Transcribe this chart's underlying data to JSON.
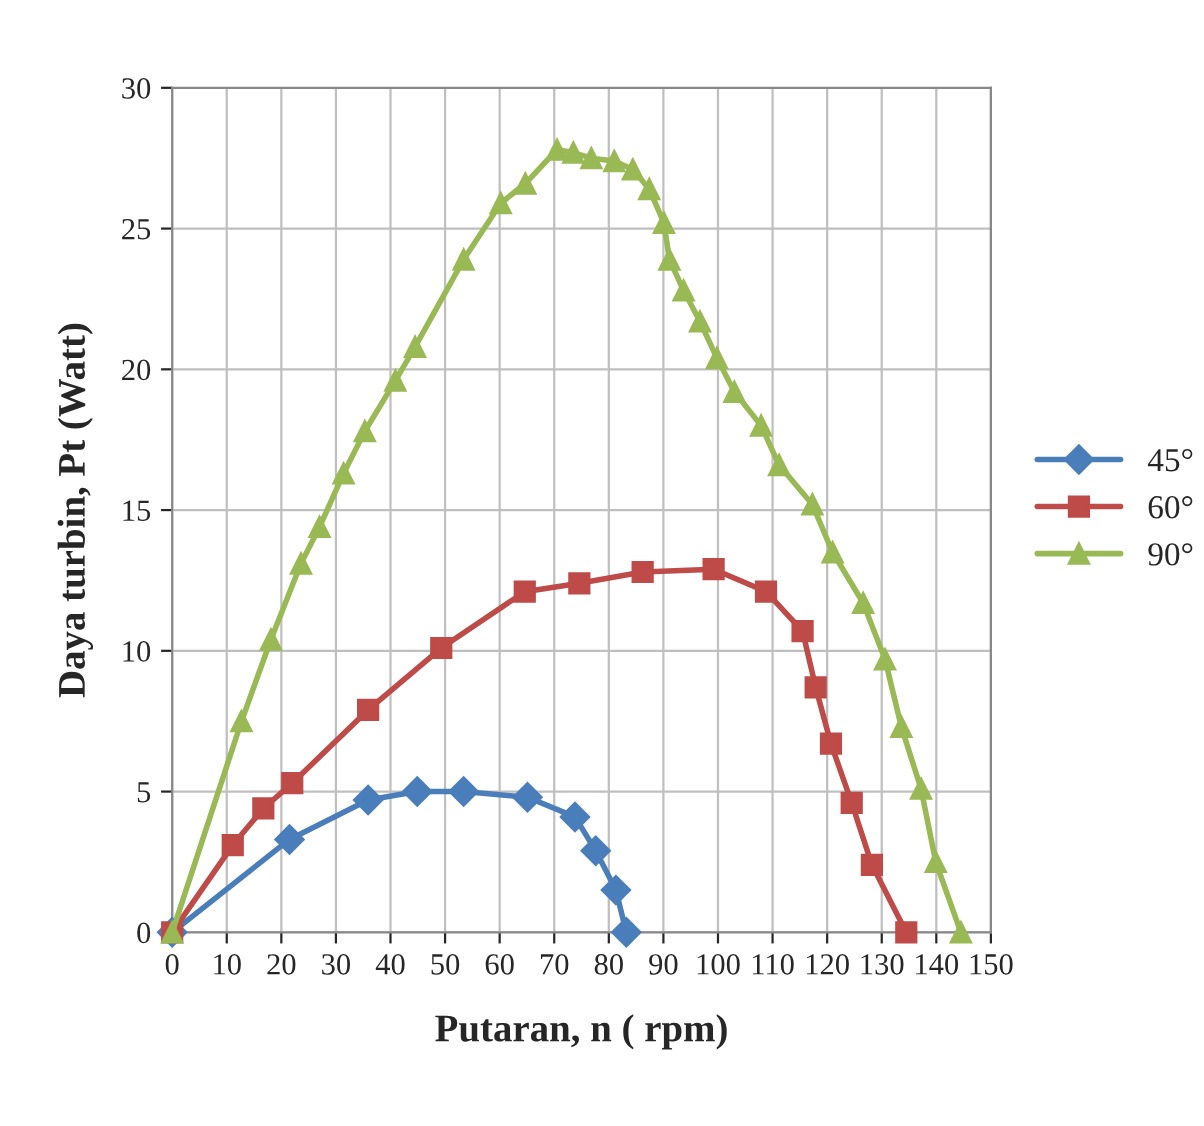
{
  "chart_data": {
    "type": "line",
    "xlabel": "Putaran, n ( rpm)",
    "ylabel": "Daya turbin, Pt (Watt)",
    "xlim": [
      0,
      150
    ],
    "xticks": [
      0,
      10,
      20,
      30,
      40,
      50,
      60,
      70,
      80,
      90,
      100,
      110,
      120,
      130,
      140,
      150
    ],
    "ylim": [
      0,
      30
    ],
    "yticks": [
      0,
      5,
      10,
      15,
      20,
      25,
      30
    ],
    "grid": true,
    "legend": "right",
    "line_style": "solid",
    "series": [
      {
        "name": "45°",
        "color": "#4a7ebb",
        "marker": "diamond",
        "x": [
          0,
          21.5,
          35.9,
          44.9,
          53.4,
          65.1,
          73.8,
          77.6,
          81.3,
          83.2
        ],
        "values": [
          0,
          3.3,
          4.7,
          5.0,
          5.0,
          4.8,
          4.1,
          2.9,
          1.5,
          0
        ]
      },
      {
        "name": "60°",
        "color": "#be4b48",
        "marker": "square",
        "x": [
          0,
          11.1,
          16.7,
          22.0,
          35.9,
          49.3,
          64.6,
          74.6,
          86.2,
          99.2,
          108.8,
          115.5,
          117.9,
          120.7,
          124.5,
          128.2,
          134.5
        ],
        "values": [
          0,
          3.1,
          4.4,
          5.3,
          7.9,
          10.1,
          12.1,
          12.4,
          12.8,
          12.9,
          12.1,
          10.7,
          8.7,
          6.7,
          4.6,
          2.4,
          0
        ]
      },
      {
        "name": "90°",
        "color": "#98b954",
        "marker": "triangle",
        "x": [
          0,
          12.7,
          18.1,
          23.6,
          27.0,
          31.4,
          35.3,
          40.9,
          44.5,
          53.4,
          60.2,
          64.7,
          70.5,
          73.5,
          76.8,
          81.0,
          84.4,
          87.4,
          90.1,
          91.1,
          93.7,
          96.7,
          99.8,
          103.0,
          107.9,
          111.2,
          117.3,
          121.0,
          126.6,
          130.6,
          133.6,
          137.2,
          139.9,
          144.5
        ],
        "values": [
          0,
          7.5,
          10.4,
          13.1,
          14.4,
          16.3,
          17.8,
          19.6,
          20.8,
          23.9,
          25.9,
          26.6,
          27.8,
          27.7,
          27.5,
          27.4,
          27.1,
          26.4,
          25.2,
          23.9,
          22.8,
          21.7,
          20.4,
          19.2,
          18.0,
          16.6,
          15.2,
          13.5,
          11.7,
          9.7,
          7.3,
          5.1,
          2.5,
          0
        ]
      }
    ]
  }
}
